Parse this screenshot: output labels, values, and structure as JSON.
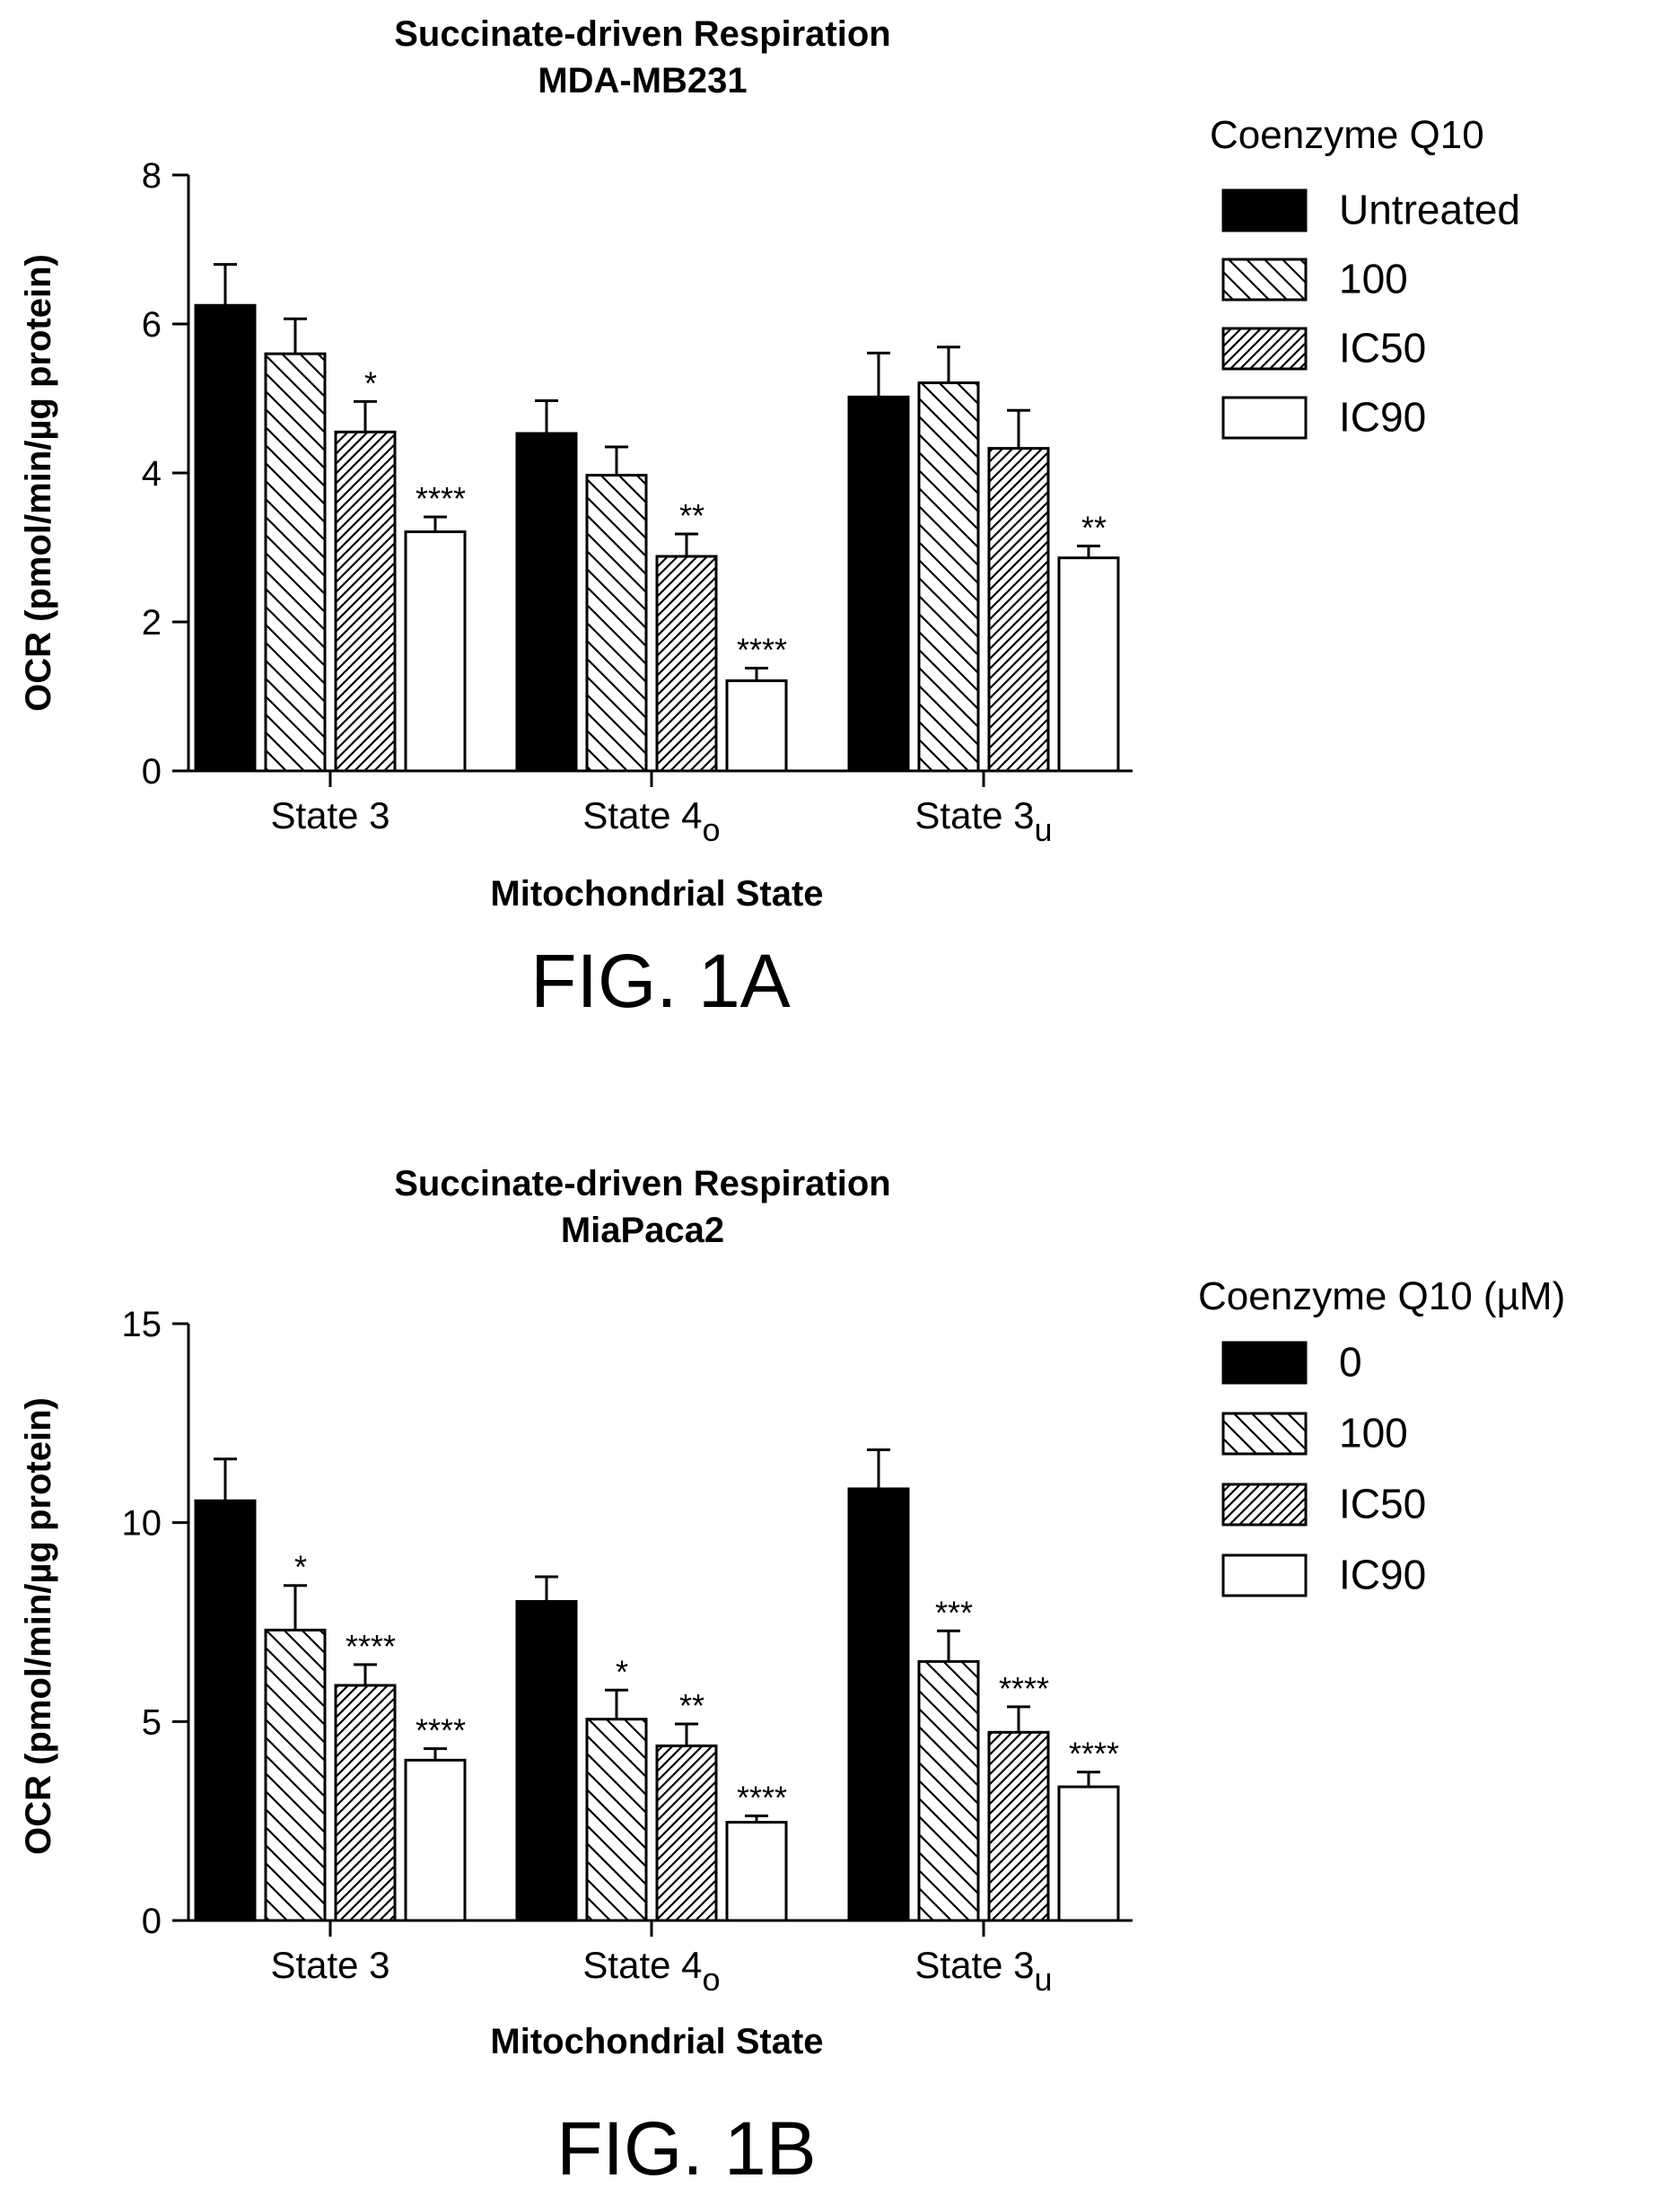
{
  "chart_data": [
    {
      "type": "bar",
      "title": "Succinate-driven Respiration",
      "subtitle": "MDA-MB231",
      "ylabel": "OCR (pmol/min/µg protein)",
      "xlabel": "Mitochondrial State",
      "figure_label": "FIG. 1A",
      "ylim": [
        0,
        8
      ],
      "yticks": [
        "0",
        "2",
        "4",
        "6",
        "8"
      ],
      "grid": false,
      "legend_position": "right",
      "legend_title": "Coenzyme Q10",
      "categories": [
        {
          "base": "State 3",
          "sub": ""
        },
        {
          "base": "State 4",
          "sub": "o"
        },
        {
          "base": "State 3",
          "sub": "u"
        }
      ],
      "series": [
        {
          "name": "Untreated",
          "pattern": "solid",
          "values": [
            6.25,
            4.53,
            5.02
          ],
          "errors": [
            0.55,
            0.44,
            0.59
          ],
          "sig": [
            "",
            "",
            ""
          ]
        },
        {
          "name": "100",
          "pattern": "back-hatch",
          "values": [
            5.6,
            3.97,
            5.21
          ],
          "errors": [
            0.47,
            0.38,
            0.48
          ],
          "sig": [
            "",
            "",
            ""
          ]
        },
        {
          "name": "IC50",
          "pattern": "fwd-hatch",
          "values": [
            4.55,
            2.88,
            4.33
          ],
          "errors": [
            0.41,
            0.3,
            0.51
          ],
          "sig": [
            "*",
            "**",
            ""
          ]
        },
        {
          "name": "IC90",
          "pattern": "open",
          "values": [
            3.21,
            1.21,
            2.86
          ],
          "errors": [
            0.2,
            0.17,
            0.16
          ],
          "sig": [
            "****",
            "****",
            "**"
          ]
        }
      ]
    },
    {
      "type": "bar",
      "title": "Succinate-driven Respiration",
      "subtitle": "MiaPaca2",
      "ylabel": "OCR (pmol/min/µg protein)",
      "xlabel": "Mitochondrial State",
      "figure_label": "FIG. 1B",
      "ylim": [
        0,
        15
      ],
      "yticks": [
        "0",
        "5",
        "10",
        "15"
      ],
      "grid": false,
      "legend_position": "right",
      "legend_title": "Coenzyme Q10 (µM)",
      "categories": [
        {
          "base": "State 3",
          "sub": ""
        },
        {
          "base": "State 4",
          "sub": "o"
        },
        {
          "base": "State 3",
          "sub": "u"
        }
      ],
      "series": [
        {
          "name": "0",
          "pattern": "solid",
          "values": [
            10.55,
            8.02,
            10.85
          ],
          "errors": [
            1.05,
            0.62,
            0.98
          ],
          "sig": [
            "",
            "",
            ""
          ]
        },
        {
          "name": "100",
          "pattern": "back-hatch",
          "values": [
            7.3,
            5.06,
            6.51
          ],
          "errors": [
            1.12,
            0.73,
            0.77
          ],
          "sig": [
            "*",
            "*",
            "***"
          ]
        },
        {
          "name": "IC50",
          "pattern": "fwd-hatch",
          "values": [
            5.91,
            4.39,
            4.73
          ],
          "errors": [
            0.52,
            0.55,
            0.64
          ],
          "sig": [
            "****",
            "**",
            "****"
          ]
        },
        {
          "name": "IC90",
          "pattern": "open",
          "values": [
            4.03,
            2.47,
            3.36
          ],
          "errors": [
            0.29,
            0.16,
            0.37
          ],
          "sig": [
            "****",
            "****",
            "****"
          ]
        }
      ]
    }
  ]
}
